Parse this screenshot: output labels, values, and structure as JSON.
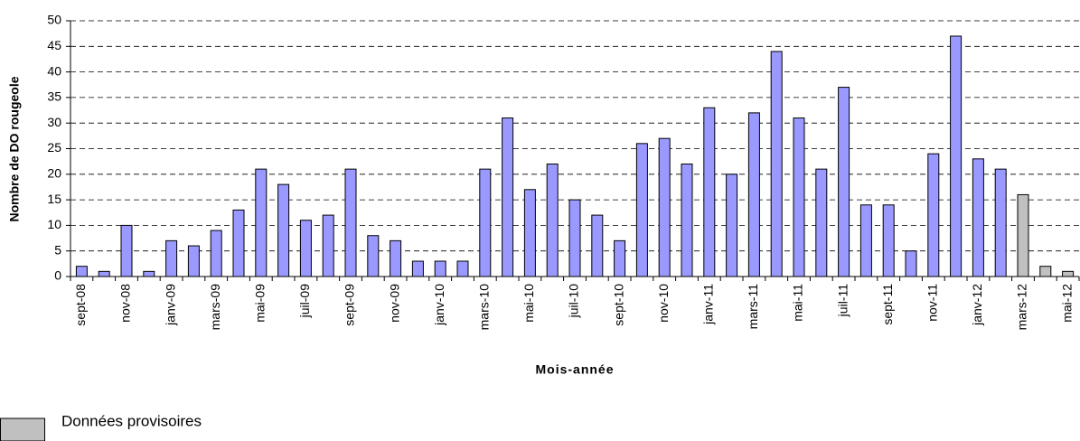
{
  "chart_data": {
    "type": "bar",
    "y_label": "Nombre de DO rougeole",
    "x_label": "Mois-année",
    "categories": [
      "sept-08",
      null,
      "nov-08",
      null,
      "janv-09",
      null,
      "mars-09",
      null,
      "mai-09",
      null,
      "juil-09",
      null,
      "sept-09",
      null,
      "nov-09",
      null,
      "janv-10",
      null,
      "mars-10",
      null,
      "mai-10",
      null,
      "juil-10",
      null,
      "sept-10",
      null,
      "nov-10",
      null,
      "janv-11",
      null,
      "mars-11",
      null,
      "mai-11",
      null,
      "juil-11",
      null,
      "sept-11",
      null,
      "nov-11",
      null,
      "janv-12",
      null,
      "mars-12",
      null,
      "mai-12"
    ],
    "series": [
      {
        "color": "#9999ff",
        "values": [
          2,
          1,
          10,
          1,
          7,
          6,
          9,
          13,
          21,
          18,
          11,
          12,
          21,
          8,
          7,
          3,
          3,
          3,
          21,
          31,
          17,
          22,
          15,
          12,
          7,
          26,
          27,
          22,
          33,
          20,
          32,
          44,
          31,
          21,
          37,
          14,
          14,
          5,
          24,
          47,
          23,
          21,
          null,
          null,
          null
        ]
      },
      {
        "name": "Données provisoires",
        "color": "#c0c0c0",
        "values": [
          null,
          null,
          null,
          null,
          null,
          null,
          null,
          null,
          null,
          null,
          null,
          null,
          null,
          null,
          null,
          null,
          null,
          null,
          null,
          null,
          null,
          null,
          null,
          null,
          null,
          null,
          null,
          null,
          null,
          null,
          null,
          null,
          null,
          null,
          null,
          null,
          null,
          null,
          null,
          null,
          null,
          null,
          16,
          2,
          1
        ]
      }
    ],
    "ylim": [
      0,
      50
    ],
    "yticks": [
      0,
      5,
      10,
      15,
      20,
      25,
      30,
      35,
      40,
      45,
      50
    ],
    "grid": true
  }
}
